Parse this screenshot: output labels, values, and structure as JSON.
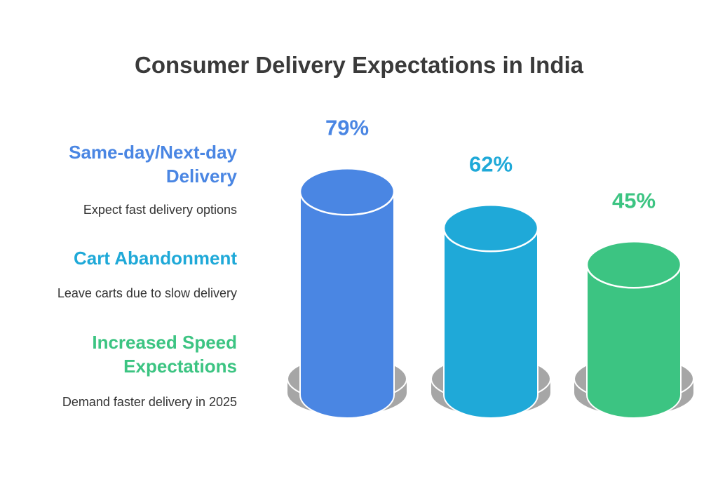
{
  "chart_data": {
    "type": "bar",
    "title": "Consumer Delivery Expectations in India",
    "categories": [
      "Same-day/Next-day Delivery",
      "Cart Abandonment",
      "Increased Speed Expectations"
    ],
    "values": [
      79,
      62,
      45
    ],
    "value_labels": [
      "79%",
      "62%",
      "45%"
    ],
    "descriptions": [
      "Expect fast delivery options",
      "Leave carts due to slow delivery",
      "Demand faster delivery in 2025"
    ],
    "colors": [
      "#4A86E3",
      "#1FA9D8",
      "#3CC482"
    ],
    "base_color": "#A6A6A6",
    "xlabel": "",
    "ylabel": "",
    "ylim": [
      0,
      100
    ]
  }
}
